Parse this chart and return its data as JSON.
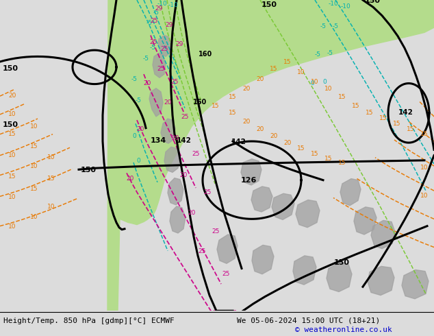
{
  "title_bottom_left": "Height/Temp. 850 hPa [gdmp][°C] ECMWF",
  "title_bottom_right": "We 05-06-2024 15:00 UTC (18+21)",
  "copyright": "© weatheronline.co.uk",
  "bg_color": "#dcdcdc",
  "ocean_color": "#dcdcdc",
  "green_color": "#b4dc8c",
  "gray_color": "#a0a0a0",
  "font_size_label": 8,
  "font_size_copyright": 8,
  "black_lw": 2.2,
  "thin_lw": 1.0
}
